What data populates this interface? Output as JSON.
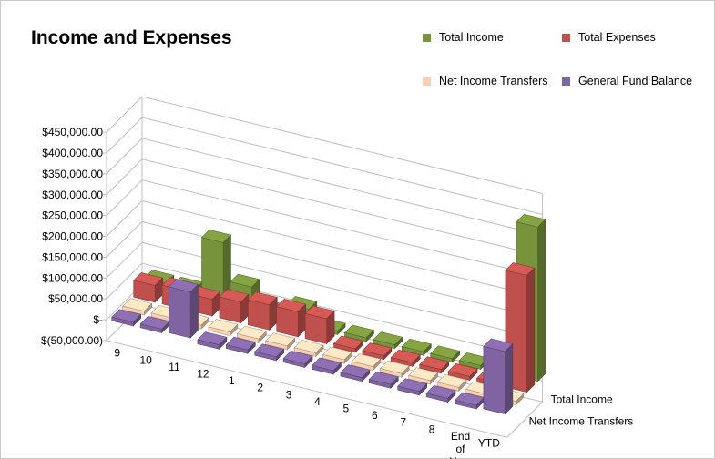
{
  "chart_data": {
    "type": "bar",
    "title": "Income and Expenses",
    "categories": [
      "9",
      "10",
      "11",
      "12",
      "1",
      "2",
      "3",
      "4",
      "5",
      "6",
      "7",
      "8",
      "End of Year",
      "YTD"
    ],
    "series": [
      {
        "name": "General Fund Balance",
        "color": "#8064a2",
        "values": [
          0,
          -5000,
          110000,
          -10000,
          -5000,
          0,
          0,
          0,
          0,
          0,
          0,
          0,
          0,
          150000
        ]
      },
      {
        "name": "Net Income Transfers",
        "color": "#f9d1b2",
        "values": [
          0,
          0,
          0,
          0,
          0,
          0,
          0,
          0,
          0,
          0,
          0,
          0,
          0,
          0
        ]
      },
      {
        "name": "Total Expenses",
        "color": "#c0504d",
        "values": [
          40000,
          45000,
          40000,
          50000,
          60000,
          60000,
          60000,
          0,
          0,
          0,
          0,
          0,
          0,
          280000
        ]
      },
      {
        "name": "Total Income",
        "color": "#77933c",
        "values": [
          20000,
          20000,
          150000,
          60000,
          15000,
          40000,
          0,
          0,
          0,
          0,
          0,
          0,
          0,
          370000
        ]
      }
    ],
    "ytick_labels": [
      "$(50,000.00)",
      "$-",
      "$50,000.00",
      "$100,000.00",
      "$150,000.00",
      "$200,000.00",
      "$250,000.00",
      "$300,000.00",
      "$350,000.00",
      "$400,000.00",
      "$450,000.00"
    ],
    "ylim": [
      -50000,
      450000
    ],
    "ytick_step": 50000,
    "depth_axis_labels": [
      "Net Income Transfers",
      "Total Income"
    ],
    "legend_position": "top-right",
    "legend": [
      "Total Income",
      "Total Expenses",
      "Net Income Transfers",
      "General Fund Balance"
    ],
    "gridlines": true
  }
}
